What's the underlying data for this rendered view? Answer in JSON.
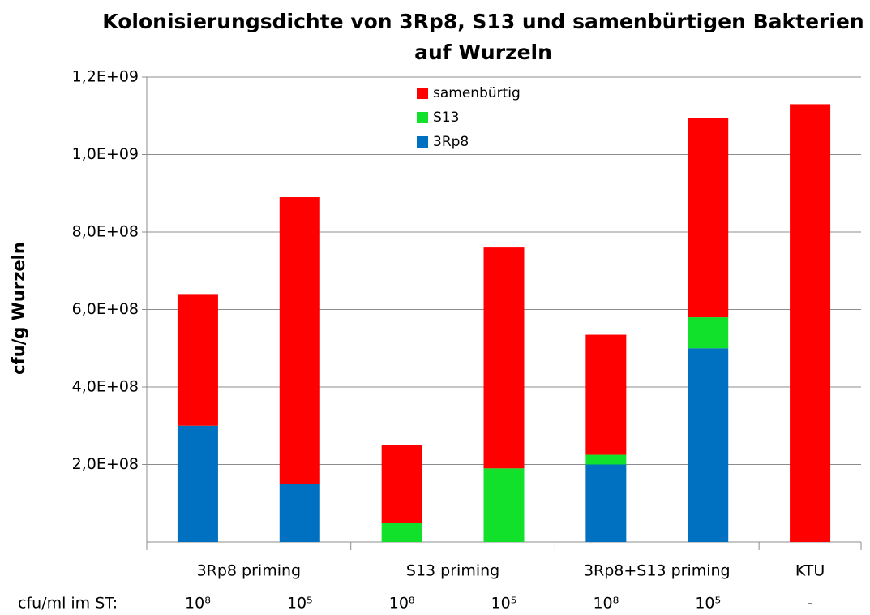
{
  "chart_data": {
    "type": "stacked_bar",
    "title": [
      "Kolonisierungsdichte  von 3Rp8, S13 und samenbürtigen  Bakterien",
      "auf Wurzeln"
    ],
    "y_label": "cfu/g Wurzeln",
    "x_row_label": "cfu/ml im ST:",
    "categories": [
      "10⁸",
      "10⁵",
      "10⁸",
      "10⁵",
      "10⁸",
      "10⁵",
      "-"
    ],
    "groups": [
      {
        "label": "3Rp8 priming",
        "span": 2
      },
      {
        "label": "S13 priming",
        "span": 2
      },
      {
        "label": "3Rp8+S13 priming",
        "span": 2
      },
      {
        "label": "KTU",
        "span": 1
      }
    ],
    "series": [
      {
        "name": "3Rp8",
        "color": "#0070c0",
        "values": [
          300000000,
          150000000,
          null,
          null,
          200000000,
          500000000,
          null
        ]
      },
      {
        "name": "S13",
        "color": "#11e12b",
        "values": [
          null,
          null,
          50000000,
          190000000,
          25000000,
          80000000,
          null
        ]
      },
      {
        "name": "samenbürtig",
        "color": "#ff0000",
        "values": [
          340000000,
          740000000,
          200000000,
          570000000,
          310000000,
          515000000,
          1130000000
        ]
      }
    ],
    "ylim": [
      0,
      1200000000
    ],
    "yticks": [
      {
        "value": 200000000,
        "label": "2,0E+08"
      },
      {
        "value": 400000000,
        "label": "4,0E+08"
      },
      {
        "value": 600000000,
        "label": "6,0E+08"
      },
      {
        "value": 800000000,
        "label": "8,0E+08"
      },
      {
        "value": 1000000000,
        "label": "1,0E+09"
      },
      {
        "value": 1200000000,
        "label": "1,2E+09"
      }
    ],
    "grid": true,
    "legend": "top"
  }
}
